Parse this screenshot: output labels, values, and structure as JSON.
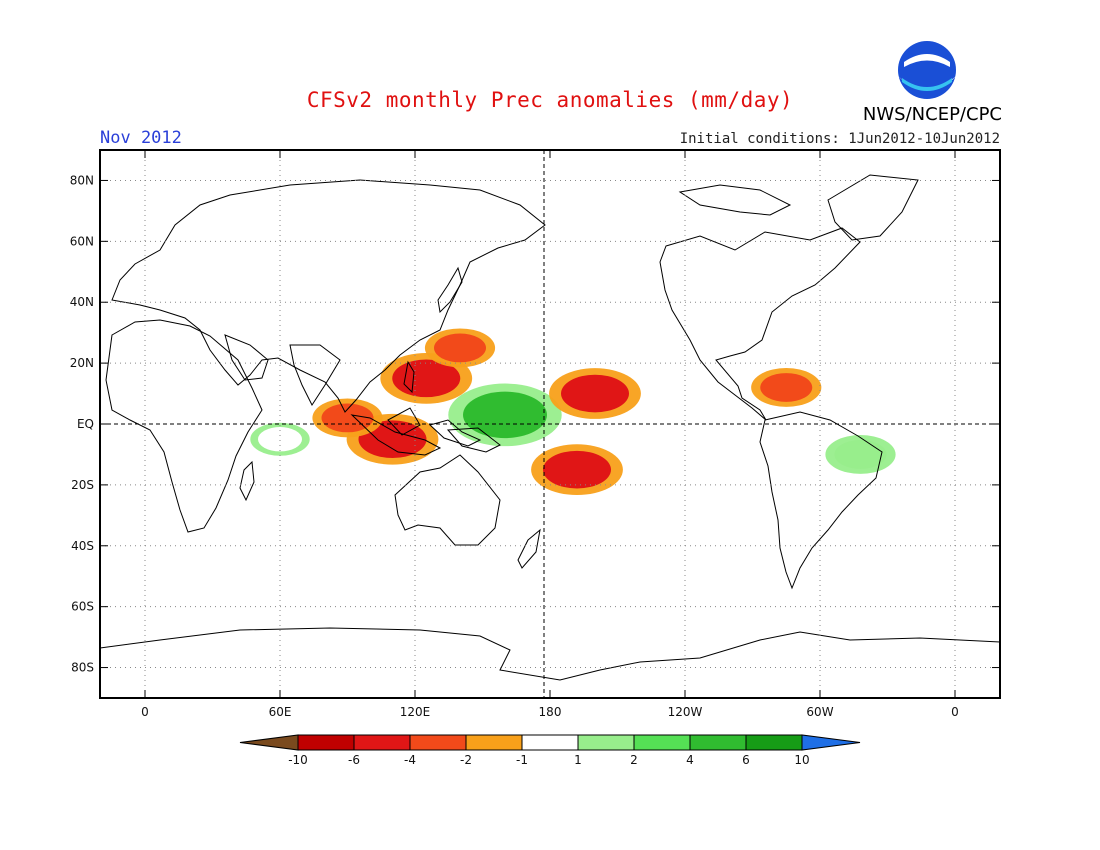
{
  "header": {
    "title": "CFSv2 monthly Prec anomalies (mm/day)",
    "valid_month": "Nov 2012",
    "initial_conditions": "Initial conditions: 1Jun2012-10Jun2012",
    "organization": "NWS/NCEP/CPC",
    "logo_text": "NOAA"
  },
  "axes": {
    "lat_labels": [
      "80N",
      "60N",
      "40N",
      "20N",
      "EQ",
      "20S",
      "40S",
      "60S",
      "80S"
    ],
    "lat_values": [
      80,
      60,
      40,
      20,
      0,
      -20,
      -40,
      -60,
      -80
    ],
    "lon_labels": [
      "0",
      "60E",
      "120E",
      "180",
      "120W",
      "60W",
      "0"
    ],
    "lon_values": [
      0,
      60,
      120,
      180,
      240,
      300,
      360
    ],
    "lon_range": [
      -20,
      380
    ],
    "lat_range": [
      -90,
      90
    ],
    "grid": "dotted",
    "reference_lines": "dashed equator and 180 meridian"
  },
  "colorbar": {
    "labels": [
      "-10",
      "-6",
      "-4",
      "-2",
      "-1",
      "1",
      "2",
      "4",
      "6",
      "10"
    ],
    "colors": [
      "#7a4a1e",
      "#c00000",
      "#e01616",
      "#f24a1a",
      "#f8a01a",
      "#ffffff",
      "#98ee8c",
      "#55e055",
      "#30bc30",
      "#169c16",
      "#1f6fe6"
    ]
  },
  "chart_data": {
    "type": "heatmap",
    "title": "CFSv2 monthly Prec anomalies (mm/day)",
    "units": "mm/day",
    "x_axis": "longitude",
    "y_axis": "latitude",
    "bins": [
      -10,
      -6,
      -4,
      -2,
      -1,
      1,
      2,
      4,
      6,
      10
    ],
    "anomaly_regions": [
      {
        "region": "Maritime Continent / Indonesia",
        "lon": 110,
        "lat": -5,
        "value": -4
      },
      {
        "region": "Philippines / western tropical Pacific",
        "lon": 125,
        "lat": 15,
        "value": -4
      },
      {
        "region": "Northwest Pacific",
        "lon": 140,
        "lat": 25,
        "value": -2
      },
      {
        "region": "West-central equatorial Pacific",
        "lon": 160,
        "lat": 3,
        "value": 6
      },
      {
        "region": "Central Pacific near 20N",
        "lon": 200,
        "lat": 10,
        "value": -4
      },
      {
        "region": "South Pacific near 15S",
        "lon": 192,
        "lat": -15,
        "value": -4
      },
      {
        "region": "Caribbean / northern South America",
        "lon": 285,
        "lat": 12,
        "value": -2
      },
      {
        "region": "Northeastern Brazil",
        "lon": 318,
        "lat": -10,
        "value": 2
      },
      {
        "region": "Eastern equatorial Indian Ocean",
        "lon": 90,
        "lat": 2,
        "value": -2
      },
      {
        "region": "Western Indian Ocean",
        "lon": 60,
        "lat": -5,
        "value": 1
      }
    ]
  }
}
